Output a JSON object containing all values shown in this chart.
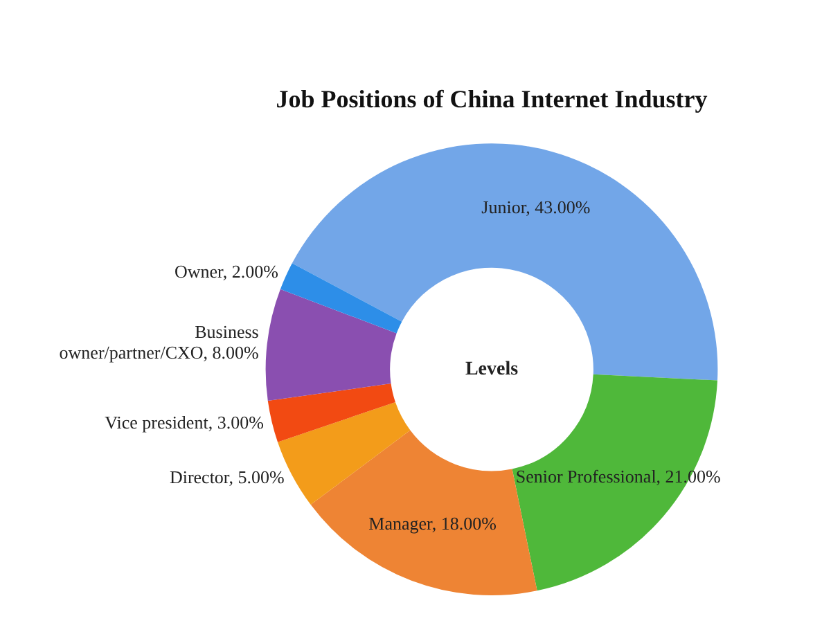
{
  "chart_data": {
    "type": "donut",
    "title": "Job Positions of China Internet Industry",
    "annotations": [
      "Levels"
    ],
    "categories": [
      "Junior",
      "Senior Professional",
      "Manager",
      "Director",
      "Vice president",
      "Business owner/partner/CXO",
      "Owner"
    ],
    "values": [
      43,
      21,
      18,
      5,
      3,
      8,
      2
    ],
    "value_labels": [
      "43.00%",
      "21.00%",
      "18.00%",
      "5.00%",
      "3.00%",
      "8.00%",
      "2.00%"
    ],
    "colors": [
      "#72a6e8",
      "#4fb83a",
      "#ee8434",
      "#f39c1a",
      "#f24a12",
      "#8a4fb0",
      "#2d8ee8"
    ],
    "legend": false
  }
}
